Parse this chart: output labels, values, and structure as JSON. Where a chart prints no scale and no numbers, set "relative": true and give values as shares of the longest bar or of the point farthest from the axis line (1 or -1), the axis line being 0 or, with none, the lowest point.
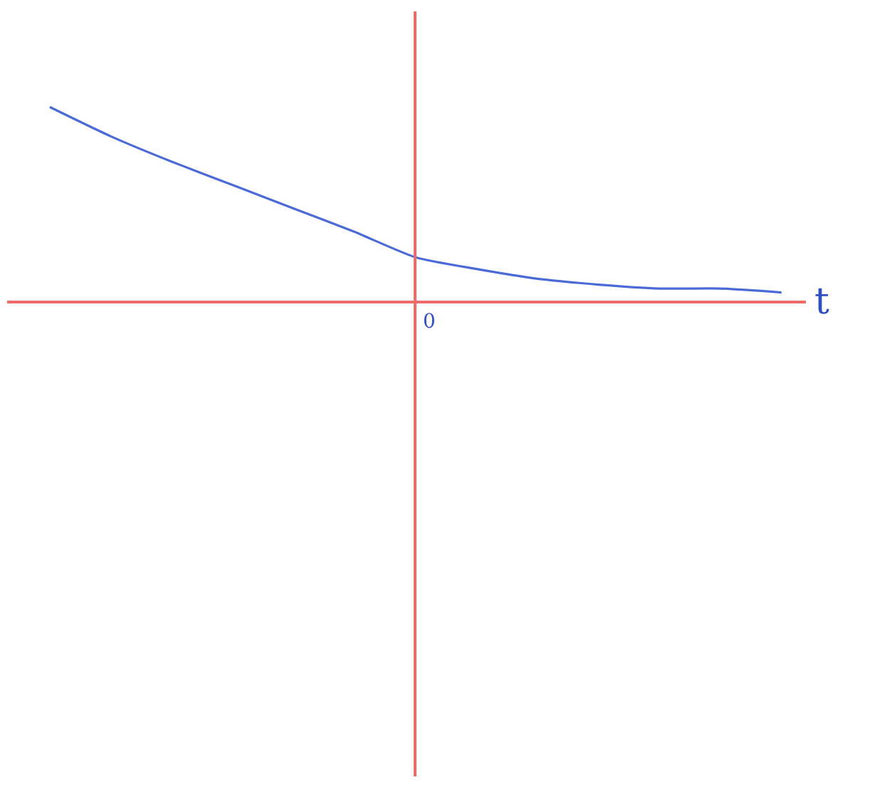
{
  "chart_data": {
    "type": "line",
    "relative": true,
    "xlabel": "t",
    "categories": [
      null,
      null,
      null,
      null,
      null,
      null,
      null,
      null,
      null,
      null,
      null,
      null,
      null
    ],
    "series": [
      {
        "color": "#4a6ad8",
        "values": [
          1,
          0.85,
          0.72,
          0.6,
          0.48,
          0.36,
          0.23,
          0.17,
          0.12,
          0.09,
          0.07,
          0.07,
          0.05
        ]
      }
    ],
    "annotations": [
      "0"
    ],
    "marker": "none",
    "line_style": "solid"
  }
}
